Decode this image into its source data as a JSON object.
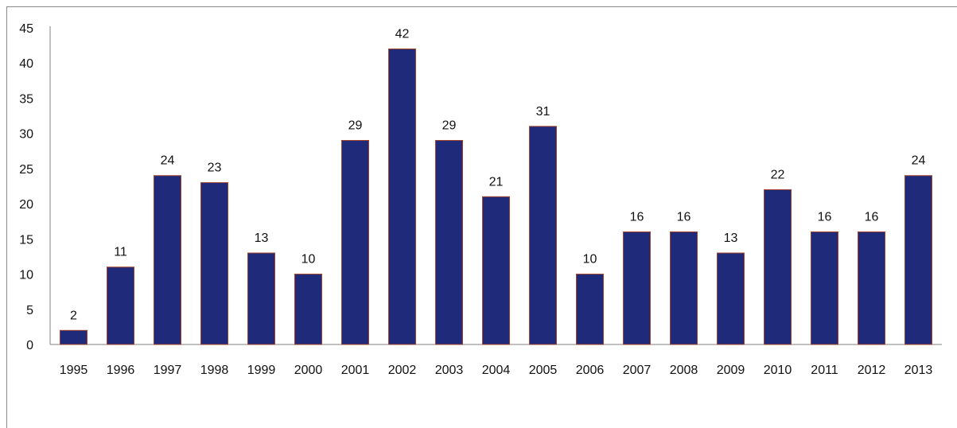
{
  "chart_data": {
    "type": "bar",
    "categories": [
      "1995",
      "1996",
      "1997",
      "1998",
      "1999",
      "2000",
      "2001",
      "2002",
      "2003",
      "2004",
      "2005",
      "2006",
      "2007",
      "2008",
      "2009",
      "2010",
      "2011",
      "2012",
      "2013"
    ],
    "values": [
      2,
      11,
      24,
      23,
      13,
      10,
      29,
      42,
      29,
      21,
      31,
      10,
      16,
      16,
      13,
      22,
      16,
      16,
      24
    ],
    "ylim": [
      0,
      45
    ],
    "yticks": [
      0,
      5,
      10,
      15,
      20,
      25,
      30,
      35,
      40,
      45
    ],
    "grid": false,
    "data_labels": true,
    "colors": {
      "bar_fill": "#1f2a7a",
      "bar_stroke": "#a0442a"
    }
  }
}
